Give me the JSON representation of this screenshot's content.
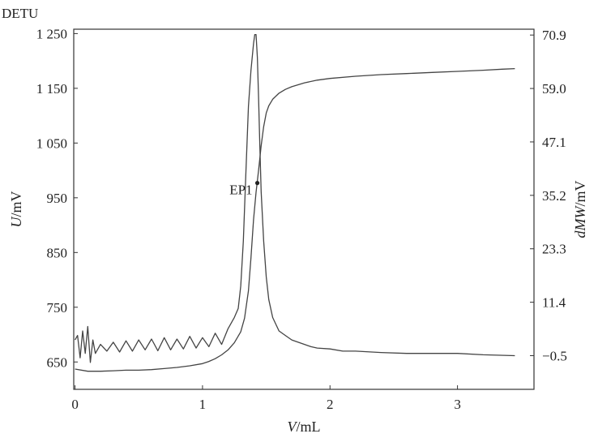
{
  "chart_data": {
    "type": "line",
    "corner_label": "DETU",
    "xlabel": {
      "var": "V",
      "unit": "/mL"
    },
    "ylabel_left": {
      "var": "U",
      "unit": "/mV"
    },
    "ylabel_right": {
      "var": "dMW",
      "unit": "/mV"
    },
    "x_ticks": [
      "0",
      "1",
      "2",
      "3"
    ],
    "x_tick_values": [
      0,
      1,
      2,
      3
    ],
    "y_left_ticks": [
      "1 250",
      "1 150",
      "1 050",
      "950",
      "850",
      "750",
      "650"
    ],
    "y_left_tick_values": [
      1250,
      1150,
      1050,
      950,
      850,
      750,
      650
    ],
    "y_right_ticks": [
      "70.9",
      "59.0",
      "47.1",
      "35.2",
      "23.3",
      "11.4",
      "−0.5"
    ],
    "y_right_tick_values": [
      70.9,
      59.0,
      47.1,
      35.2,
      23.3,
      11.4,
      -0.5
    ],
    "xlim": [
      -0.01,
      3.6
    ],
    "ylim_left": [
      600,
      1258
    ],
    "ylim_right": [
      -8.0,
      72.2
    ],
    "grid": false,
    "annotation": {
      "text": "EP1",
      "x": 1.43,
      "y": 977
    },
    "series": [
      {
        "axis": "left",
        "x": [
          0,
          0.1,
          0.2,
          0.3,
          0.4,
          0.5,
          0.6,
          0.7,
          0.8,
          0.9,
          1.0,
          1.05,
          1.1,
          1.15,
          1.2,
          1.25,
          1.3,
          1.33,
          1.36,
          1.38,
          1.4,
          1.42,
          1.44,
          1.46,
          1.48,
          1.5,
          1.52,
          1.55,
          1.6,
          1.65,
          1.7,
          1.8,
          1.9,
          2.0,
          2.2,
          2.4,
          2.6,
          2.8,
          3.0,
          3.2,
          3.35,
          3.45
        ],
        "y": [
          637,
          633,
          633,
          634,
          635,
          635,
          636,
          638,
          640,
          643,
          647,
          651,
          656,
          663,
          672,
          685,
          705,
          730,
          780,
          840,
          910,
          960,
          1000,
          1045,
          1080,
          1105,
          1118,
          1130,
          1141,
          1148,
          1153,
          1160,
          1165,
          1168,
          1172,
          1175,
          1177,
          1179,
          1181,
          1183,
          1185,
          1186
        ]
      },
      {
        "axis": "right",
        "x": [
          0,
          0.02,
          0.04,
          0.06,
          0.08,
          0.1,
          0.12,
          0.14,
          0.16,
          0.2,
          0.25,
          0.3,
          0.35,
          0.4,
          0.45,
          0.5,
          0.55,
          0.6,
          0.65,
          0.7,
          0.75,
          0.8,
          0.85,
          0.9,
          0.95,
          1.0,
          1.05,
          1.1,
          1.15,
          1.2,
          1.25,
          1.28,
          1.3,
          1.32,
          1.34,
          1.36,
          1.38,
          1.4,
          1.41,
          1.42,
          1.43,
          1.44,
          1.45,
          1.46,
          1.48,
          1.5,
          1.52,
          1.55,
          1.6,
          1.65,
          1.7,
          1.75,
          1.8,
          1.85,
          1.9,
          2.0,
          2.1,
          2.2,
          2.4,
          2.6,
          2.8,
          3.0,
          3.2,
          3.45
        ],
        "y": [
          3,
          4,
          -1,
          5,
          0,
          6,
          -2,
          3,
          0,
          2,
          0.5,
          2.5,
          0.3,
          2.8,
          0.5,
          3,
          0.8,
          3.2,
          0.6,
          3.5,
          0.8,
          3.2,
          1,
          3.8,
          1.2,
          3.5,
          1.5,
          4.5,
          2,
          5.5,
          8,
          10,
          15,
          25,
          40,
          55,
          63,
          69,
          71,
          71,
          66,
          57,
          46,
          36,
          25,
          17,
          12,
          8,
          5,
          4,
          3,
          2.5,
          2,
          1.5,
          1.2,
          1,
          0.5,
          0.5,
          0.2,
          0,
          0,
          0,
          -0.3,
          -0.5
        ]
      }
    ]
  }
}
